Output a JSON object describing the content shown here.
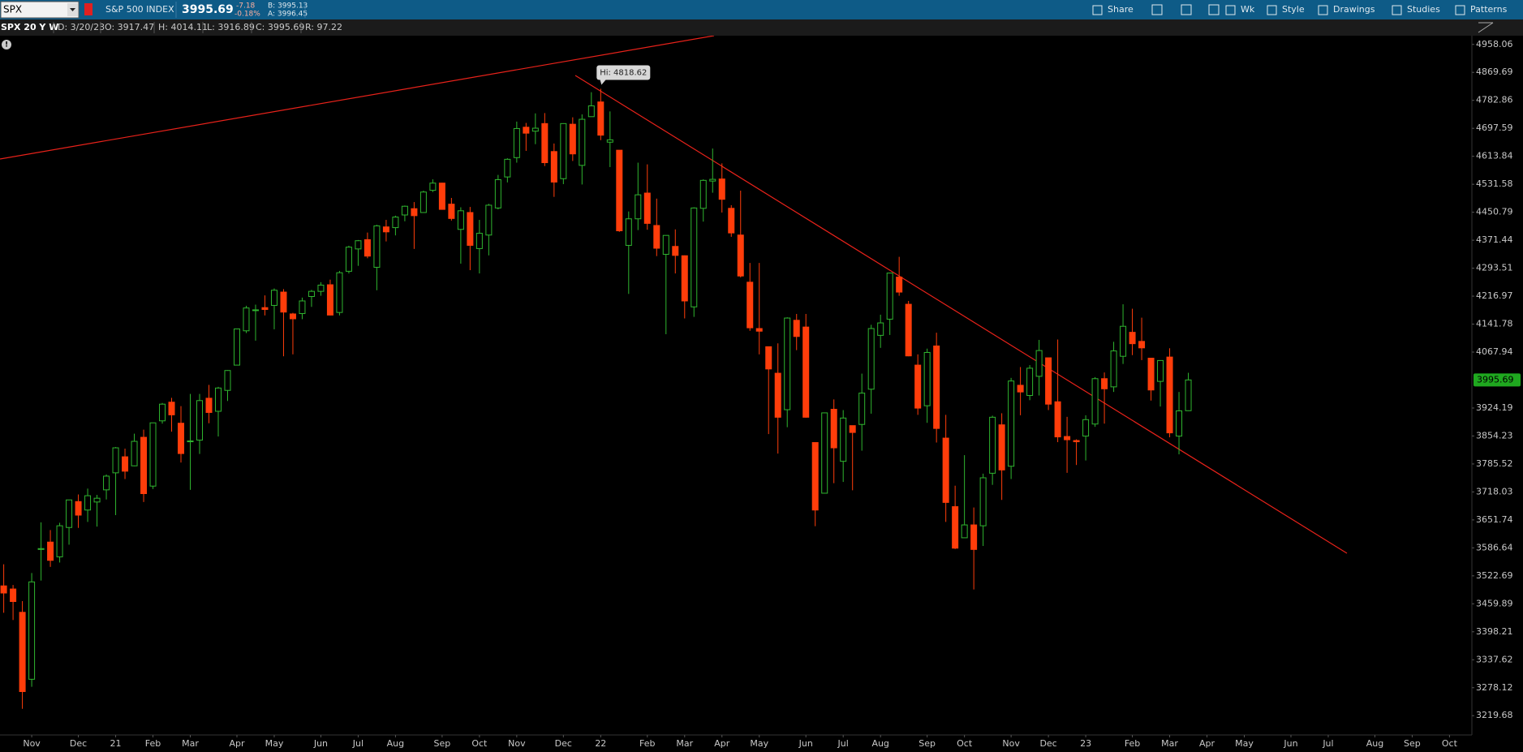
{
  "toolbar": {
    "symbol": "SPX",
    "description": "S&P 500 INDEX",
    "last": "3995.69",
    "change": "-7.18",
    "change_pct": "-0.18%",
    "bid": "B: 3995.13",
    "ask": "A: 3996.45",
    "buttons": [
      "Share",
      "Wk",
      "Style",
      "Drawings",
      "Studies",
      "Patterns"
    ]
  },
  "status_bar": {
    "chart": "SPX 20 Y W",
    "fields": [
      "D: 3/20/23",
      "O: 3917.47",
      "H: 4014.11",
      "L: 3916.89",
      "C: 3995.69",
      "R: 97.22"
    ]
  },
  "chart_data": {
    "type": "candlestick",
    "log_scale": true,
    "grid": false,
    "up_color": "#2fb52f",
    "down_color": "#ff3d0a",
    "trendline_color": "#e8221a",
    "annotation": "Hi: 4818.62",
    "ylim": [
      3180,
      4986
    ],
    "yticks": [
      4958.06,
      4869.69,
      4782.86,
      4697.59,
      4613.84,
      4531.58,
      4450.79,
      4371.44,
      4293.51,
      4216.97,
      4141.78,
      4067.94,
      3924.19,
      3854.23,
      3785.52,
      3718.03,
      3651.74,
      3586.64,
      3522.69,
      3459.89,
      3398.21,
      3337.62,
      3278.12,
      3219.68
    ],
    "xlim": [
      -0.4,
      157.4
    ],
    "xticks": [
      {
        "value": 3,
        "label": "Nov"
      },
      {
        "value": 8,
        "label": "Dec"
      },
      {
        "value": 12,
        "label": "21"
      },
      {
        "value": 16,
        "label": "Feb"
      },
      {
        "value": 20,
        "label": "Mar"
      },
      {
        "value": 25,
        "label": "Apr"
      },
      {
        "value": 29,
        "label": "May"
      },
      {
        "value": 34,
        "label": "Jun"
      },
      {
        "value": 38,
        "label": "Jul"
      },
      {
        "value": 42,
        "label": "Aug"
      },
      {
        "value": 47,
        "label": "Sep"
      },
      {
        "value": 51,
        "label": "Oct"
      },
      {
        "value": 55,
        "label": "Nov"
      },
      {
        "value": 60,
        "label": "Dec"
      },
      {
        "value": 64,
        "label": "22"
      },
      {
        "value": 69,
        "label": "Feb"
      },
      {
        "value": 73,
        "label": "Mar"
      },
      {
        "value": 77,
        "label": "Apr"
      },
      {
        "value": 81,
        "label": "May"
      },
      {
        "value": 86,
        "label": "Jun"
      },
      {
        "value": 90,
        "label": "Jul"
      },
      {
        "value": 94,
        "label": "Aug"
      },
      {
        "value": 99,
        "label": "Sep"
      },
      {
        "value": 103,
        "label": "Oct"
      },
      {
        "value": 108,
        "label": "Nov"
      },
      {
        "value": 112,
        "label": "Dec"
      },
      {
        "value": 116,
        "label": "23"
      },
      {
        "value": 121,
        "label": "Feb"
      },
      {
        "value": 125,
        "label": "Mar"
      },
      {
        "value": 129,
        "label": "Apr"
      },
      {
        "value": 133,
        "label": "May"
      },
      {
        "value": 138,
        "label": "Jun"
      },
      {
        "value": 142,
        "label": "Jul"
      },
      {
        "value": 147,
        "label": "Aug"
      },
      {
        "value": 151,
        "label": "Sep"
      },
      {
        "value": 155,
        "label": "Oct"
      }
    ],
    "open": [
      3500,
      3493,
      3441,
      3296,
      3583,
      3600,
      3566,
      3634,
      3695,
      3675,
      3694,
      3723,
      3764,
      3803,
      3781,
      3851,
      3732,
      3892,
      3939,
      3886,
      3842,
      3844,
      3949,
      3916,
      3969,
      4034,
      4124,
      4179,
      4186,
      4192,
      4228,
      4169,
      4170,
      4216,
      4230,
      4248,
      4173,
      4285,
      4347,
      4373,
      4296,
      4409,
      4407,
      4443,
      4461,
      4450,
      4514,
      4535,
      4474,
      4402,
      4450,
      4348,
      4386,
      4463,
      4553,
      4610,
      4701,
      4689,
      4712,
      4628,
      4548,
      4710,
      4587,
      4733,
      4778,
      4656,
      4632,
      4357,
      4432,
      4506,
      4413,
      4332,
      4354,
      4328,
      4188,
      4462,
      4541,
      4547,
      4462,
      4386,
      4255,
      4130,
      4082,
      4013,
      3920,
      4152,
      4134,
      3838,
      3715,
      3921,
      3792,
      3880,
      3883,
      3972,
      4112,
      4155,
      4269,
      4195,
      4034,
      3930,
      4084,
      3849,
      3683,
      3610,
      3640,
      3638,
      3763,
      3882,
      3780,
      3982,
      3956,
      4005,
      4053,
      3940,
      3853,
      3843,
      3854,
      3884,
      3999,
      3978,
      4057,
      4120,
      4096,
      4052,
      3992,
      4055,
      3854,
      3917.47
    ],
    "high": [
      3549,
      3502,
      3466,
      3529,
      3646,
      3628,
      3645,
      3699,
      3712,
      3726,
      3711,
      3760,
      3827,
      3823,
      3860,
      3870,
      3887,
      3937,
      3950,
      3929,
      3960,
      3960,
      3983,
      3978,
      4021,
      4129,
      4191,
      4194,
      4219,
      4238,
      4236,
      4172,
      4213,
      4234,
      4255,
      4262,
      4286,
      4356,
      4372,
      4393,
      4415,
      4429,
      4441,
      4470,
      4480,
      4513,
      4546,
      4536,
      4492,
      4465,
      4466,
      4429,
      4475,
      4559,
      4608,
      4718,
      4714,
      4743,
      4744,
      4652,
      4713,
      4731,
      4740,
      4808,
      4818.62,
      4749,
      4632,
      4453,
      4595,
      4590,
      4490,
      4385,
      4402,
      4329,
      4465,
      4546,
      4637,
      4593,
      4471,
      4513,
      4308,
      4308,
      4082,
      4091,
      4160,
      4169,
      4169,
      3838,
      3913,
      3946,
      3919,
      3880,
      4012,
      4140,
      4167,
      4280,
      4325,
      4204,
      4062,
      4077,
      4119,
      3907,
      3733,
      3807,
      3681,
      3762,
      3905,
      3911,
      4001,
      4029,
      4034,
      4100,
      4053,
      4101,
      3902,
      3846,
      3906,
      4003,
      4015,
      4095,
      4195,
      4183,
      4159,
      4052,
      4046,
      4078,
      3965,
      4014.11
    ],
    "low": [
      3440,
      3424,
      3234,
      3280,
      3512,
      3543,
      3553,
      3594,
      3633,
      3647,
      3636,
      3700,
      3663,
      3749,
      3780,
      3694,
      3725,
      3885,
      3865,
      3789,
      3723,
      3810,
      3886,
      3853,
      3942,
      4034,
      4118,
      4098,
      4165,
      4128,
      4057,
      4062,
      4155,
      4188,
      4218,
      4165,
      4165,
      4279,
      4300,
      4321,
      4233,
      4368,
      4385,
      4425,
      4347,
      4450,
      4509,
      4458,
      4427,
      4306,
      4288,
      4279,
      4329,
      4459,
      4537,
      4595,
      4630,
      4650,
      4585,
      4495,
      4532,
      4600,
      4531,
      4733,
      4662,
      4582,
      4395,
      4223,
      4400,
      4401,
      4327,
      4115,
      4279,
      4157,
      4161,
      4424,
      4507,
      4450,
      4381,
      4268,
      4124,
      4062,
      3859,
      3811,
      3876,
      4073,
      3900,
      3637,
      3715,
      3739,
      3742,
      3722,
      3818,
      3910,
      4079,
      4113,
      4218,
      4057,
      3907,
      3887,
      3838,
      3647,
      3584,
      3610,
      3492,
      3591,
      3735,
      3699,
      3749,
      3906,
      3944,
      3956,
      3919,
      3839,
      3764,
      3783,
      3794,
      3877,
      3885,
      3965,
      4037,
      4060,
      4047,
      3943,
      3928,
      3851,
      3809,
      3916.89
    ],
    "close": [
      3484,
      3465,
      3270,
      3509,
      3585,
      3558,
      3638,
      3699,
      3663,
      3709,
      3703,
      3756,
      3825,
      3768,
      3841,
      3714,
      3887,
      3934,
      3907,
      3811,
      3842,
      3943,
      3913,
      3975,
      4020,
      4129,
      4185,
      4180,
      4181,
      4233,
      4174,
      4156,
      4204,
      4230,
      4247,
      4166,
      4281,
      4352,
      4370,
      4327,
      4412,
      4395,
      4437,
      4468,
      4441,
      4509,
      4535,
      4459,
      4433,
      4455,
      4357,
      4391,
      4471,
      4545,
      4605,
      4697,
      4683,
      4698,
      4595,
      4538,
      4712,
      4621,
      4725,
      4766,
      4677,
      4663,
      4398,
      4432,
      4501,
      4419,
      4349,
      4385,
      4329,
      4204,
      4463,
      4543,
      4546,
      4488,
      4392,
      4272,
      4132,
      4123,
      4024,
      3901,
      4158,
      4109,
      3901,
      3675,
      3912,
      3825,
      3899,
      3863,
      3962,
      4130,
      4145,
      4280,
      4228,
      4058,
      3924,
      4067,
      3873,
      3693,
      3586,
      3640,
      3583,
      3752,
      3901,
      3771,
      3993,
      3965,
      4026,
      4072,
      3934,
      3852,
      3845,
      3840,
      3895,
      3999,
      3973,
      4071,
      4136,
      4090,
      4079,
      3970,
      4046,
      3862,
      3917,
      3995.69
    ]
  }
}
